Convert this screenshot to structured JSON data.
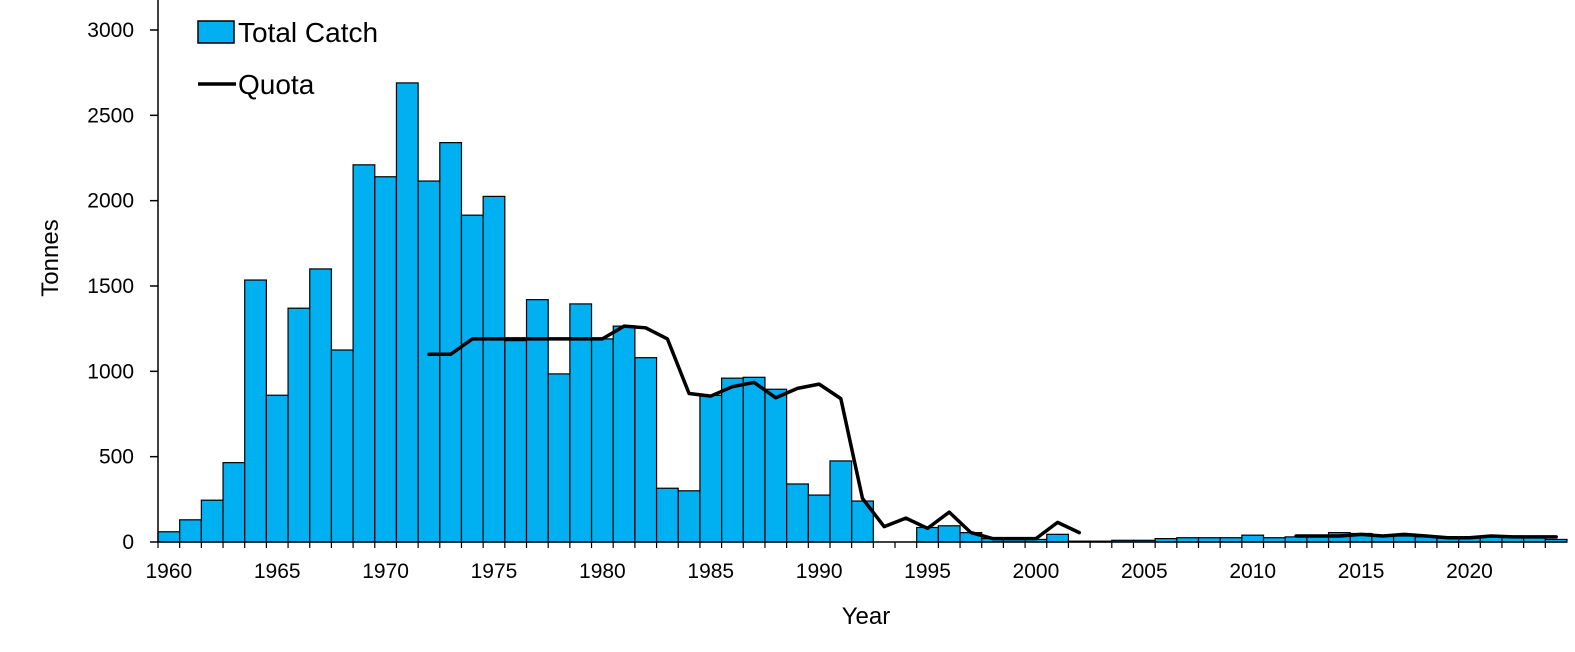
{
  "chart_data": {
    "type": "bar",
    "xlabel": "Year",
    "ylabel": "Tonnes",
    "ylim": [
      0,
      3000
    ],
    "yticks": [
      0,
      500,
      1000,
      1500,
      2000,
      2500,
      3000
    ],
    "xlim": [
      1959.5,
      2024.5
    ],
    "xticks": [
      1960,
      1965,
      1970,
      1975,
      1980,
      1985,
      1990,
      1995,
      2000,
      2005,
      2010,
      2015,
      2020
    ],
    "legend_position": "top-left",
    "grid": false,
    "series": [
      {
        "name": "Total Catch",
        "type": "bar",
        "color": "#00b0f0",
        "x": [
          1960,
          1961,
          1962,
          1963,
          1964,
          1965,
          1966,
          1967,
          1968,
          1969,
          1970,
          1971,
          1972,
          1973,
          1974,
          1975,
          1976,
          1977,
          1978,
          1979,
          1980,
          1981,
          1982,
          1983,
          1984,
          1985,
          1986,
          1987,
          1988,
          1989,
          1990,
          1991,
          1992,
          1993,
          1994,
          1995,
          1996,
          1997,
          1998,
          1999,
          2000,
          2001,
          2002,
          2003,
          2004,
          2005,
          2006,
          2007,
          2008,
          2009,
          2010,
          2011,
          2012,
          2013,
          2014,
          2015,
          2016,
          2017,
          2018,
          2019,
          2020,
          2021,
          2022,
          2023,
          2024
        ],
        "values": [
          60,
          130,
          245,
          465,
          1535,
          860,
          1370,
          1600,
          1125,
          2210,
          2140,
          2690,
          2115,
          2340,
          1915,
          2025,
          1180,
          1420,
          985,
          1395,
          1190,
          1265,
          1080,
          315,
          300,
          860,
          960,
          965,
          895,
          340,
          275,
          475,
          240,
          0,
          0,
          85,
          95,
          55,
          20,
          15,
          15,
          45,
          5,
          5,
          10,
          10,
          20,
          25,
          25,
          25,
          40,
          25,
          30,
          40,
          55,
          50,
          40,
          35,
          30,
          25,
          30,
          35,
          35,
          30,
          15
        ]
      },
      {
        "name": "Quota",
        "type": "line",
        "color": "#000000",
        "segments": [
          {
            "x": [
              1972,
              1973,
              1974,
              1975,
              1976,
              1977,
              1978,
              1979,
              1980,
              1981,
              1982,
              1983,
              1984,
              1985,
              1986,
              1987,
              1988,
              1989,
              1990,
              1991,
              1992,
              1993,
              1994,
              1995,
              1996,
              1997,
              1998,
              1999,
              2000,
              2001,
              2002
            ],
            "values": [
              1100,
              1100,
              1190,
              1190,
              1190,
              1190,
              1190,
              1190,
              1190,
              1265,
              1255,
              1190,
              870,
              855,
              910,
              935,
              845,
              900,
              925,
              840,
              255,
              90,
              140,
              80,
              175,
              55,
              20,
              20,
              20,
              115,
              55
            ]
          },
          {
            "x": [
              2012,
              2013,
              2014,
              2015,
              2016,
              2017,
              2018,
              2019,
              2020,
              2021,
              2022,
              2023,
              2024
            ],
            "values": [
              35,
              35,
              35,
              45,
              35,
              45,
              35,
              25,
              25,
              35,
              30,
              30,
              30
            ]
          }
        ]
      }
    ]
  }
}
